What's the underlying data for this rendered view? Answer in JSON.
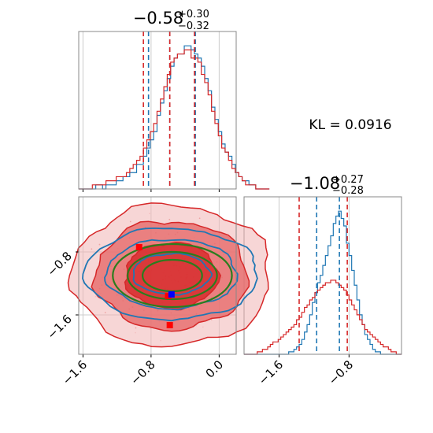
{
  "colors": {
    "series_red": "#d62728",
    "series_blue": "#1f77b4",
    "contour_green": "#2a7d1e",
    "marker_blue": "#0000ff",
    "marker_red": "#ff0000",
    "grid": "#cccccc",
    "frame": "#888888"
  },
  "kl_label": "KL = 0.0916",
  "chart_data": [
    {
      "type": "histogram",
      "panel": "marginal-param-1",
      "title": {
        "value": "−0.58",
        "plus": "+0.30",
        "minus": "−0.32"
      },
      "xlim": [
        -1.65,
        0.2
      ],
      "grid": true,
      "bins": {
        "start": -1.65,
        "width": 0.04
      },
      "series": [
        {
          "color": "#1f77b4",
          "counts": [
            0,
            0,
            0,
            0,
            0,
            1,
            1,
            0,
            1,
            1,
            1,
            2,
            2,
            3,
            3,
            4,
            4,
            6,
            6,
            8,
            10,
            12,
            14,
            18,
            21,
            24,
            27,
            30,
            32,
            33,
            33,
            35,
            35,
            34,
            33,
            32,
            30,
            27,
            24,
            20,
            17,
            14,
            11,
            9,
            8,
            6,
            4,
            3,
            2,
            2,
            1,
            1,
            0,
            0,
            0,
            0
          ],
          "quantile_lines": [
            -0.83,
            -0.58,
            -0.28
          ]
        },
        {
          "color": "#d62728",
          "counts": [
            0,
            0,
            0,
            0,
            1,
            1,
            1,
            1,
            2,
            2,
            2,
            3,
            3,
            3,
            4,
            5,
            6,
            7,
            8,
            10,
            12,
            14,
            16,
            19,
            22,
            25,
            28,
            31,
            32,
            33,
            33,
            34,
            34,
            32,
            32,
            31,
            28,
            26,
            23,
            19,
            16,
            13,
            10,
            9,
            7,
            5,
            4,
            3,
            2,
            1,
            1,
            1,
            0,
            0,
            0,
            0
          ],
          "quantile_lines": [
            -0.89,
            -0.58,
            -0.29
          ]
        }
      ]
    },
    {
      "type": "histogram",
      "panel": "marginal-param-2",
      "title": {
        "value": "−1.08",
        "plus": "+0.27",
        "minus": "−0.28"
      },
      "xlim": [
        -2.0,
        -0.2
      ],
      "xticks": [
        -1.6,
        -0.8
      ],
      "grid": true,
      "bins": {
        "start": -2.0,
        "width": 0.03
      },
      "series": [
        {
          "color": "#1f77b4",
          "counts": [
            0,
            0,
            0,
            0,
            0,
            0,
            0,
            0,
            0,
            0,
            0,
            0,
            0,
            0,
            0,
            0,
            0,
            1,
            1,
            2,
            3,
            4,
            6,
            9,
            12,
            16,
            21,
            25,
            29,
            32,
            36,
            40,
            44,
            48,
            53,
            56,
            58,
            55,
            52,
            45,
            40,
            34,
            28,
            22,
            16,
            12,
            8,
            6,
            4,
            2,
            1,
            1,
            0,
            0,
            0,
            0,
            0,
            0,
            0,
            0
          ],
          "quantile_lines": [
            -1.17,
            -0.91
          ]
        },
        {
          "color": "#d62728",
          "counts": [
            0,
            0,
            0,
            0,
            0,
            1,
            1,
            2,
            2,
            3,
            4,
            5,
            5,
            6,
            7,
            8,
            9,
            10,
            11,
            12,
            14,
            15,
            17,
            19,
            20,
            22,
            23,
            25,
            26,
            27,
            28,
            29,
            29,
            30,
            30,
            29,
            28,
            27,
            26,
            24,
            22,
            20,
            18,
            16,
            14,
            12,
            10,
            9,
            8,
            7,
            6,
            5,
            4,
            3,
            3,
            2,
            1,
            1,
            0,
            0
          ],
          "quantile_lines": [
            -1.37,
            -0.82
          ]
        }
      ]
    },
    {
      "type": "contour",
      "panel": "joint",
      "xlim": [
        -1.65,
        0.2
      ],
      "ylim": [
        -2.1,
        -0.1
      ],
      "xticks": [
        -1.6,
        -0.8,
        0.0
      ],
      "yticks": [
        -0.8,
        -1.6
      ],
      "grid": true,
      "series": [
        {
          "color": "#d62728",
          "center": [
            -0.56,
            -1.1
          ],
          "sx": 0.39,
          "sy": 0.3,
          "levels": [
            1.4,
            2.3,
            3.0
          ]
        },
        {
          "color": "#1f77b4",
          "center": [
            -0.56,
            -1.08
          ],
          "sx": 0.35,
          "sy": 0.2,
          "levels": [
            1.3,
            2.2,
            2.9
          ]
        },
        {
          "color": "#2a7d1e",
          "center": [
            -0.55,
            -1.1
          ],
          "sx": 0.35,
          "sy": 0.2,
          "levels": [
            1.0,
            1.5,
            2.0
          ]
        }
      ],
      "markers": [
        {
          "color": "#ff0000",
          "x": -0.94,
          "y": -0.74
        },
        {
          "color": "#ff0000",
          "x": -0.6,
          "y": -1.36
        },
        {
          "color": "#ff0000",
          "x": -0.58,
          "y": -1.73
        },
        {
          "color": "#0000ff",
          "x": -0.56,
          "y": -1.34
        }
      ]
    }
  ]
}
